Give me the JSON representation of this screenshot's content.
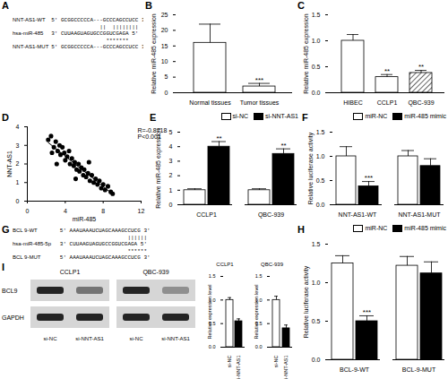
{
  "chart_data": [
    {
      "panel": "A",
      "type": "sequence_alignment",
      "rows": [
        {
          "label": "NNT-AS1-WT",
          "sequence": "5' GCGGCCCCCA---GCCCAGCCUCC 3'"
        },
        {
          "label": null,
          "sequence": "               ||  ||||||||"
        },
        {
          "label": "hsa-miR-485",
          "sequence": "3' CUUAAGUAGUGCCGGUCGAGA 5'"
        },
        {
          "label": null,
          "sequence": "                 *******"
        },
        {
          "label": "NNT-AS1-MUT",
          "sequence": "5' GCGGCCCCCA---GCCCAGCCUCC 3'"
        }
      ]
    },
    {
      "panel": "B",
      "type": "bar",
      "y_label": "Relative miR-485 expression",
      "categories": [
        "Normal tissues",
        "Tumor tissues"
      ],
      "values": [
        16,
        2
      ],
      "errors": [
        6,
        1
      ],
      "significance": [
        null,
        "***"
      ],
      "colors": [
        "#ffffff",
        "#ffffff"
      ],
      "ylim": [
        0,
        25
      ],
      "yticks": [
        0,
        5,
        10,
        15,
        20,
        25
      ]
    },
    {
      "panel": "C",
      "type": "bar",
      "y_label": "Relative miR-485 expression",
      "categories": [
        "HIBEC",
        "CCLP1",
        "QBC-939"
      ],
      "values": [
        1.0,
        0.3,
        0.38
      ],
      "errors": [
        0.12,
        0.05,
        0.05
      ],
      "significance": [
        null,
        "**",
        "**"
      ],
      "colors": [
        "#ffffff",
        "#ffffff",
        "hatch"
      ],
      "ylim": [
        0,
        1.5
      ],
      "yticks": [
        {
          "value": 0,
          "label": "0.0"
        },
        0.5,
        {
          "value": 1,
          "label": "1.0"
        },
        1.5
      ]
    },
    {
      "panel": "D",
      "type": "scatter",
      "x_label": "miR-485",
      "y_label": "NNT-AS1",
      "annotations": [
        "R=-0.8718",
        "P<0.001"
      ],
      "color": "#000000",
      "x": [
        2.2,
        2.5,
        2.8,
        3.0,
        3.2,
        3.4,
        3.5,
        3.7,
        3.9,
        4.0,
        4.2,
        4.4,
        4.5,
        4.7,
        4.9,
        5.0,
        5.2,
        5.4,
        5.5,
        5.7,
        5.9,
        6.0,
        6.2,
        6.4,
        6.6,
        6.8,
        7.0,
        7.2,
        7.4,
        7.6,
        7.8,
        8.0,
        8.2,
        8.5,
        8.8,
        9.0,
        3.1,
        6.5,
        5.1,
        2.6
      ],
      "values": [
        3.3,
        3.5,
        2.9,
        3.2,
        2.7,
        3.0,
        2.5,
        2.9,
        2.6,
        2.2,
        2.4,
        2.7,
        2.0,
        2.3,
        1.9,
        2.1,
        1.7,
        2.0,
        1.6,
        1.8,
        1.4,
        1.7,
        1.3,
        1.5,
        1.1,
        1.4,
        1.0,
        1.2,
        0.9,
        1.1,
        0.7,
        0.9,
        0.6,
        0.8,
        0.5,
        0.4,
        2.0,
        2.1,
        1.2,
        2.6
      ],
      "xlim": [
        0,
        12
      ],
      "xticks": [
        0,
        4,
        8,
        12
      ],
      "ylim": [
        0,
        4
      ],
      "yticks": [
        0,
        1,
        2,
        3,
        4
      ]
    },
    {
      "panel": "E",
      "type": "bar",
      "y_label": "Relative miR-485 expression",
      "categories": [
        "CCLP1",
        "QBC-939"
      ],
      "series": [
        {
          "name": "si-NC",
          "color": "#ffffff",
          "values": [
            1.0,
            1.0
          ],
          "errors": [
            0.1,
            0.1
          ],
          "significance": [
            null,
            null
          ]
        },
        {
          "name": "si-NNT-AS1",
          "color": "#000000",
          "values": [
            4.0,
            3.5
          ],
          "errors": [
            0.35,
            0.35
          ],
          "significance": [
            "**",
            "**"
          ]
        }
      ],
      "ylim": [
        0,
        5
      ],
      "yticks": [
        0,
        1,
        2,
        3,
        4,
        5
      ]
    },
    {
      "panel": "F",
      "type": "bar",
      "y_label": "Relative luciferase activity",
      "categories": [
        "NNT-AS1-WT",
        "NNT-AS1-MUT"
      ],
      "series": [
        {
          "name": "miR-NC",
          "color": "#ffffff",
          "values": [
            1.0,
            1.0
          ],
          "errors": [
            0.2,
            0.12
          ],
          "significance": [
            null,
            null
          ]
        },
        {
          "name": "miR-485 mimic",
          "color": "#000000",
          "values": [
            0.38,
            0.8
          ],
          "errors": [
            0.1,
            0.15
          ],
          "significance": [
            "***",
            null
          ]
        }
      ],
      "ylim": [
        0,
        1.5
      ],
      "yticks": [
        {
          "value": 0,
          "label": "0.0"
        },
        0.5,
        {
          "value": 1,
          "label": "1.0"
        },
        1.5
      ]
    },
    {
      "panel": "G",
      "type": "sequence_alignment",
      "rows": [
        {
          "label": "BCL 9-WT",
          "sequence": "5' AAAUAAAUCUAGCAAAGCCUCG 3'"
        },
        {
          "label": null,
          "sequence": "                     ||||||"
        },
        {
          "label": "hsa-miR-485-5p",
          "sequence": "3' CUUAAGUAGUGCCGGUCGAGA 5'"
        },
        {
          "label": null,
          "sequence": "                     ******"
        },
        {
          "label": "BCL 9-MUT",
          "sequence": "5' AAAUAAAUCUAGCAAAGCCUCG 3'"
        }
      ]
    },
    {
      "panel": "H",
      "type": "bar",
      "y_label": "Relative luciferase activity",
      "categories": [
        "BCL-9-WT",
        "BCL-9-MUT"
      ],
      "series": [
        {
          "name": "miR-NC",
          "color": "#ffffff",
          "values": [
            1.25,
            1.22
          ],
          "errors": [
            0.1,
            0.12
          ],
          "significance": [
            null,
            null
          ]
        },
        {
          "name": "miR-485 mimic",
          "color": "#000000",
          "values": [
            0.5,
            1.12
          ],
          "errors": [
            0.07,
            0.15
          ],
          "significance": [
            "***",
            null
          ]
        }
      ],
      "ylim": [
        0,
        1.5
      ],
      "yticks": [
        {
          "value": 0,
          "label": "0.0"
        },
        0.5,
        {
          "value": 1,
          "label": "1.0"
        },
        1.5
      ]
    },
    {
      "panel": "I",
      "type": "western_blot",
      "blots": [
        "CCLP1",
        "QBC-939"
      ],
      "rows": [
        "BCL9",
        "GAPDH"
      ],
      "lanes": [
        "si-NC",
        "si-NNT-AS1"
      ]
    },
    {
      "type": "bar",
      "title": "CCLP1",
      "y_label": "Relative expression level",
      "categories": [
        "si-NC",
        "si-NNT-AS1"
      ],
      "values": [
        1.0,
        0.55
      ],
      "errors": [
        0.05,
        0.05
      ],
      "colors": [
        "#ffffff",
        "#000000"
      ],
      "ylim": [
        0,
        1.5
      ],
      "yticks": [
        {
          "value": 0,
          "label": "0.0"
        },
        0.5,
        {
          "value": 1,
          "label": "1.0"
        },
        1.5
      ]
    },
    {
      "type": "bar",
      "title": "QBC-939",
      "y_label": "Relative expression level",
      "categories": [
        "si-NC",
        "si-NNT-AS1"
      ],
      "values": [
        1.0,
        0.4
      ],
      "errors": [
        0.08,
        0.07
      ],
      "colors": [
        "#ffffff",
        "#000000"
      ],
      "ylim": [
        0,
        1.5
      ],
      "yticks": [
        {
          "value": 0,
          "label": "0.0"
        },
        0.5,
        {
          "value": 1,
          "label": "1.0"
        },
        1.5
      ]
    }
  ]
}
